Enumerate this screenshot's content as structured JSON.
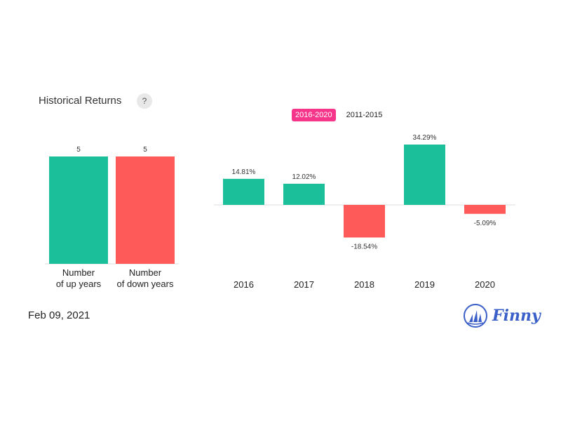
{
  "header": {
    "title": "Historical Returns",
    "help_label": "?"
  },
  "tabs": [
    {
      "label": "2016-2020",
      "active": true
    },
    {
      "label": "2011-2015",
      "active": false
    }
  ],
  "footer": {
    "date": "Feb 09, 2021",
    "brand": "Finny"
  },
  "colors": {
    "positive": "#1bbf9a",
    "negative": "#ff5a5a",
    "accent": "#f7358a",
    "brand": "#3a5fc8"
  },
  "chart_data": [
    {
      "type": "bar",
      "categories_lines": [
        [
          "Number",
          "of up years"
        ],
        [
          "Number",
          "of down years"
        ]
      ],
      "values": [
        5,
        5
      ],
      "value_labels": [
        "5",
        "5"
      ],
      "colors": [
        "#1bbf9a",
        "#ff5a5a"
      ],
      "ylim": [
        0,
        5
      ]
    },
    {
      "type": "bar",
      "categories": [
        "2016",
        "2017",
        "2018",
        "2019",
        "2020"
      ],
      "values": [
        14.81,
        12.02,
        -18.54,
        34.29,
        -5.09
      ],
      "value_labels": [
        "14.81%",
        "12.02%",
        "-18.54%",
        "34.29%",
        "-5.09%"
      ],
      "unit": "%",
      "ylim": [
        -35,
        34.29
      ]
    }
  ]
}
